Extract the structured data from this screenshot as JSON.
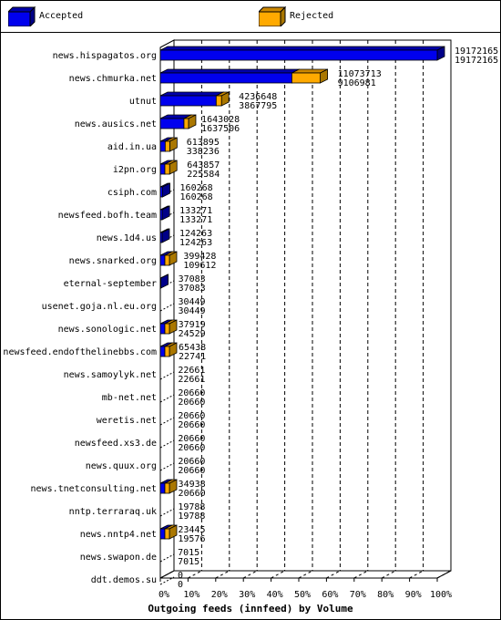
{
  "legend": [
    {
      "name": "Accepted",
      "color": "#0000ee"
    },
    {
      "name": "Rejected",
      "color": "#ffaa00"
    }
  ],
  "chart_data": {
    "type": "bar",
    "orientation": "horizontal",
    "rendering": "3d",
    "title": "",
    "xlabel": "Outgoing feeds (innfeed) by Volume",
    "ylabel": "",
    "xlim": [
      0,
      100
    ],
    "x_unit": "%",
    "x_ticks": [
      "0%",
      "10%",
      "20%",
      "30%",
      "40%",
      "50%",
      "60%",
      "70%",
      "80%",
      "90%",
      "100%"
    ],
    "grid": "vertical-dashed",
    "legend_placement": "top",
    "categories": [
      "news.hispagatos.org",
      "news.chmurka.net",
      "utnut",
      "news.ausics.net",
      "aid.in.ua",
      "i2pn.org",
      "csiph.com",
      "newsfeed.bofh.team",
      "news.1d4.us",
      "news.snarked.org",
      "eternal-september",
      "usenet.goja.nl.eu.org",
      "news.sonologic.net",
      "newsfeed.endofthelinebbs.com",
      "news.samoylyk.net",
      "mb-net.net",
      "weretis.net",
      "newsfeed.xs3.de",
      "news.quux.org",
      "news.tnetconsulting.net",
      "nntp.terraraq.uk",
      "news.nntp4.net",
      "news.swapon.de",
      "ddt.demos.su"
    ],
    "series": [
      {
        "name": "Accepted",
        "color": "#0000ee",
        "values": [
          19172165,
          11073713,
          4236648,
          1643028,
          613895,
          643857,
          160268,
          133271,
          124263,
          399428,
          37083,
          30449,
          37919,
          65438,
          22661,
          20660,
          20660,
          20660,
          20660,
          34938,
          19788,
          23445,
          7015,
          0
        ]
      },
      {
        "name": "Rejected",
        "color": "#ffaa00",
        "values": [
          19172165,
          9106981,
          3867795,
          1637506,
          338236,
          225584,
          160268,
          133271,
          124263,
          109612,
          37083,
          30449,
          24529,
          22741,
          22661,
          20660,
          20660,
          20660,
          20660,
          20660,
          19788,
          19576,
          7015,
          0
        ]
      }
    ]
  }
}
